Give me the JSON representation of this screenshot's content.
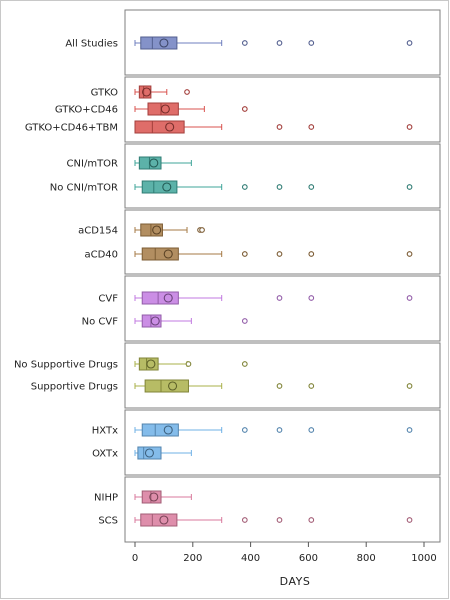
{
  "chart_data": {
    "type": "boxplot",
    "orientation": "horizontal",
    "xlabel": "DAYS",
    "xlim": [
      -40,
      1040
    ],
    "xticks": [
      0,
      200,
      400,
      600,
      800,
      1000
    ],
    "grid": false,
    "panels": [
      {
        "name": "overall",
        "color": "#6f7fbf",
        "rows": [
          {
            "label": "All Studies",
            "whisker_low": 0,
            "q1": 20,
            "median": 60,
            "q3": 145,
            "whisker_high": 300,
            "mean": 100,
            "outliers": [
              380,
              500,
              610,
              950
            ]
          }
        ]
      },
      {
        "name": "genetics",
        "color": "#d9534f",
        "rows": [
          {
            "label": "GTKO",
            "whisker_low": 0,
            "q1": 15,
            "median": 30,
            "q3": 55,
            "whisker_high": 110,
            "mean": 40,
            "outliers": [
              180
            ]
          },
          {
            "label": "GTKO+CD46",
            "whisker_low": 0,
            "q1": 45,
            "median": 90,
            "q3": 150,
            "whisker_high": 240,
            "mean": 105,
            "outliers": [
              380
            ]
          },
          {
            "label": "GTKO+CD46+TBM",
            "whisker_low": 0,
            "q1": 0,
            "median": 60,
            "q3": 170,
            "whisker_high": 300,
            "mean": 120,
            "outliers": [
              500,
              610,
              950
            ]
          }
        ]
      },
      {
        "name": "cni",
        "color": "#3fa59a",
        "rows": [
          {
            "label": "CNI/mTOR",
            "whisker_low": 0,
            "q1": 15,
            "median": 50,
            "q3": 90,
            "whisker_high": 195,
            "mean": 65,
            "outliers": []
          },
          {
            "label": "No CNI/mTOR",
            "whisker_low": 0,
            "q1": 25,
            "median": 65,
            "q3": 145,
            "whisker_high": 300,
            "mean": 110,
            "outliers": [
              380,
              500,
              610,
              950
            ]
          }
        ]
      },
      {
        "name": "costim",
        "color": "#a57a45",
        "rows": [
          {
            "label": "aCD154",
            "whisker_low": 0,
            "q1": 20,
            "median": 55,
            "q3": 95,
            "whisker_high": 180,
            "mean": 75,
            "outliers": [
              225,
              232
            ]
          },
          {
            "label": "aCD40",
            "whisker_low": 0,
            "q1": 25,
            "median": 70,
            "q3": 150,
            "whisker_high": 300,
            "mean": 115,
            "outliers": [
              380,
              500,
              610,
              950
            ]
          }
        ]
      },
      {
        "name": "cvf",
        "color": "#c27ae0",
        "rows": [
          {
            "label": "CVF",
            "whisker_low": 0,
            "q1": 25,
            "median": 80,
            "q3": 150,
            "whisker_high": 300,
            "mean": 115,
            "outliers": [
              500,
              610,
              950
            ]
          },
          {
            "label": "No CVF",
            "whisker_low": 0,
            "q1": 25,
            "median": 55,
            "q3": 90,
            "whisker_high": 195,
            "mean": 70,
            "outliers": [
              380
            ]
          }
        ]
      },
      {
        "name": "supportive",
        "color": "#aab04a",
        "rows": [
          {
            "label": "No Supportive Drugs",
            "whisker_low": 0,
            "q1": 15,
            "median": 40,
            "q3": 80,
            "whisker_high": 180,
            "mean": 55,
            "outliers": [
              185,
              380
            ]
          },
          {
            "label": "Supportive Drugs",
            "whisker_low": 0,
            "q1": 35,
            "median": 90,
            "q3": 185,
            "whisker_high": 300,
            "mean": 130,
            "outliers": [
              500,
              610,
              950
            ]
          }
        ]
      },
      {
        "name": "transplant",
        "color": "#6fb0e6",
        "rows": [
          {
            "label": "HXTx",
            "whisker_low": 0,
            "q1": 25,
            "median": 70,
            "q3": 150,
            "whisker_high": 300,
            "mean": 115,
            "outliers": [
              380,
              500,
              610,
              950
            ]
          },
          {
            "label": "OXTx",
            "whisker_low": 0,
            "q1": 10,
            "median": 30,
            "q3": 90,
            "whisker_high": 195,
            "mean": 50,
            "outliers": []
          }
        ]
      },
      {
        "name": "source",
        "color": "#d87a9c",
        "rows": [
          {
            "label": "NIHP",
            "whisker_low": 0,
            "q1": 25,
            "median": 55,
            "q3": 90,
            "whisker_high": 195,
            "mean": 65,
            "outliers": []
          },
          {
            "label": "SCS",
            "whisker_low": 0,
            "q1": 20,
            "median": 60,
            "q3": 145,
            "whisker_high": 300,
            "mean": 100,
            "outliers": [
              380,
              500,
              610,
              950
            ]
          }
        ]
      }
    ]
  }
}
